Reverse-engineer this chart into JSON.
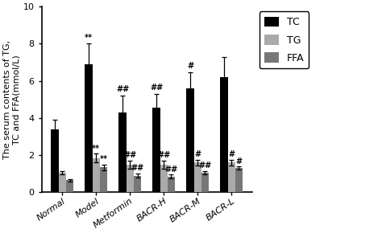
{
  "categories": [
    "Normal",
    "Model",
    "Metformin",
    "BACR-H",
    "BACR-M",
    "BACR-L"
  ],
  "TC_values": [
    3.4,
    6.9,
    4.3,
    4.55,
    5.6,
    6.2
  ],
  "TG_values": [
    1.05,
    1.85,
    1.5,
    1.5,
    1.6,
    1.6
  ],
  "FFA_values": [
    0.65,
    1.35,
    0.9,
    0.85,
    1.05,
    1.3
  ],
  "TC_errors": [
    0.5,
    1.1,
    0.9,
    0.75,
    0.85,
    1.1
  ],
  "TG_errors": [
    0.07,
    0.22,
    0.22,
    0.22,
    0.15,
    0.15
  ],
  "FFA_errors": [
    0.07,
    0.15,
    0.12,
    0.1,
    0.1,
    0.08
  ],
  "TC_color": "#000000",
  "TG_color": "#aaaaaa",
  "FFA_color": "#777777",
  "ylabel": "The serum contents of TG,\nTC and FFA(mmol/L)",
  "ylim": [
    0,
    10
  ],
  "yticks": [
    0,
    2,
    4,
    6,
    8,
    10
  ],
  "bar_width": 0.22,
  "significance_TC": [
    "",
    "**",
    "##",
    "##",
    "#",
    ""
  ],
  "significance_TG": [
    "",
    "**",
    "##",
    "##",
    "#",
    "#"
  ],
  "significance_FFA": [
    "",
    "**",
    "##",
    "##",
    "##",
    "#"
  ],
  "legend_labels": [
    "TC",
    "TG",
    "FFA"
  ],
  "tick_fontsize": 8,
  "label_fontsize": 8
}
